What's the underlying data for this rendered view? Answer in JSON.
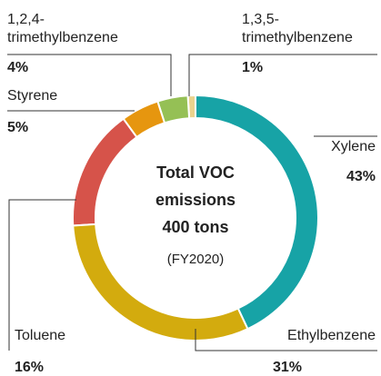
{
  "chart_data": {
    "type": "donut",
    "categories": [
      "Xylene",
      "Ethylbenzene",
      "Toluene",
      "Styrene",
      "1,2,4-trimethylbenzene",
      "1,3,5-trimethylbenzene"
    ],
    "values": [
      43,
      31,
      16,
      5,
      4,
      1
    ],
    "value_labels": [
      "43%",
      "31%",
      "16%",
      "5%",
      "4%",
      "1%"
    ],
    "colors": [
      "#17a3a6",
      "#d3ab0e",
      "#d6534a",
      "#e6960f",
      "#95c055",
      "#ebd38e"
    ],
    "center_text": [
      "Total VOC",
      "emissions",
      "400 tons",
      "(FY2020)"
    ]
  }
}
